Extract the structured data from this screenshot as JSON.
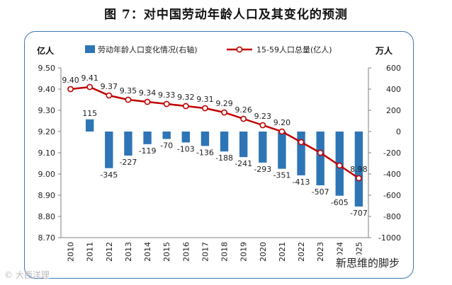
{
  "page_title": "图 7：对中国劳动年龄人口及其变化的预测",
  "watermark_left": "© 大西洋理",
  "watermark_right": "新思维的脚步",
  "colors": {
    "bar": "#2e75b6",
    "line": "#c00000",
    "marker_fill": "#ffffff",
    "frame": "#3b76b5",
    "axis": "#7f7f7f"
  },
  "chart_data": {
    "type": "bar+line",
    "title": "图 7：对中国劳动年龄人口及其变化的预测",
    "left_axis_unit": "亿人",
    "right_axis_unit": "万人",
    "categories": [
      "2010",
      "2011",
      "2012",
      "2013",
      "2014",
      "2015",
      "2016",
      "2017",
      "2018",
      "2019",
      "2020",
      "2021",
      "2022",
      "2023",
      "2024",
      "2025"
    ],
    "series": [
      {
        "name": "劳动年龄人口变化情况(右轴)",
        "type": "bar",
        "axis": "right",
        "values": [
          null,
          115,
          -345,
          -227,
          -119,
          -70,
          -103,
          -136,
          -188,
          -241,
          -293,
          -351,
          -413,
          -507,
          -605,
          -707
        ],
        "labels": [
          "",
          "115",
          "-345",
          "-227",
          "-119",
          "-70",
          "-103",
          "-136",
          "-188",
          "-241",
          "-293",
          "-351",
          "-413",
          "-507",
          "-605",
          "-707"
        ]
      },
      {
        "name": "15-59人口总量(亿人)",
        "type": "line",
        "axis": "left",
        "values": [
          9.4,
          9.41,
          9.37,
          9.35,
          9.34,
          9.33,
          9.32,
          9.31,
          9.29,
          9.26,
          9.23,
          9.2,
          9.15,
          9.1,
          9.04,
          8.98
        ],
        "labels": [
          "9.40",
          "9.41",
          "9.37",
          "9.35",
          "9.34",
          "9.33",
          "9.32",
          "9.31",
          "9.29",
          "9.26",
          "9.23",
          "9.20",
          "",
          "",
          "",
          "8.98"
        ]
      }
    ],
    "left_axis": {
      "min": 8.7,
      "max": 9.5,
      "ticks": [
        "9.50",
        "9.40",
        "9.30",
        "9.20",
        "9.10",
        "9.00",
        "8.90",
        "8.80",
        "8.70"
      ]
    },
    "right_axis": {
      "min": -1000,
      "max": 600,
      "ticks": [
        "600",
        "400",
        "200",
        "0",
        "-200",
        "-400",
        "-600",
        "-800",
        "-1000"
      ]
    },
    "grid": false,
    "legend_position": "top"
  }
}
